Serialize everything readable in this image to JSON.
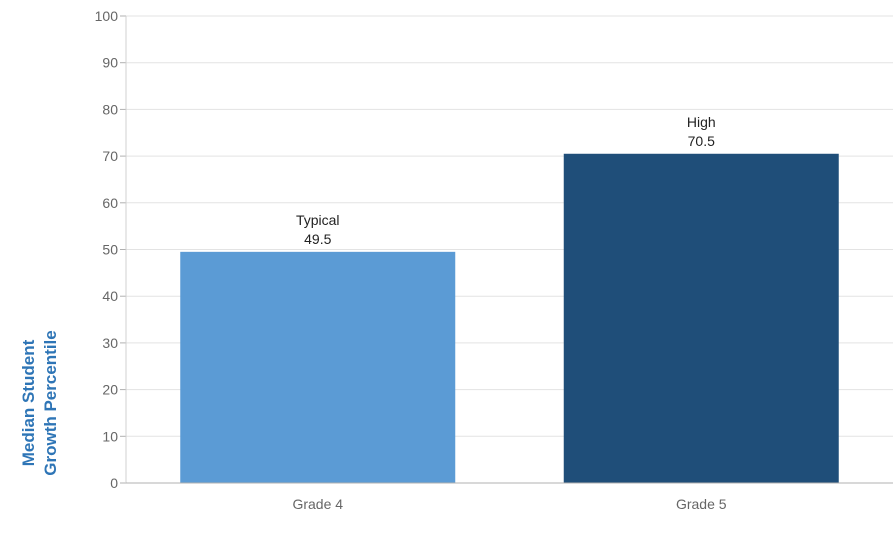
{
  "chart_data": {
    "type": "bar",
    "categories": [
      "Grade 4",
      "Grade 5"
    ],
    "values": [
      49.5,
      70.5
    ],
    "bar_labels": [
      "Typical",
      "High"
    ],
    "value_labels": [
      "49.5",
      "70.5"
    ],
    "bar_colors": [
      "#5b9bd5",
      "#1f4e79"
    ],
    "title": "",
    "xlabel": "",
    "ylabel_lines": [
      "Median Student",
      "Growth Percentile"
    ],
    "ylabel_color": "#2e75b6",
    "ylim": [
      0,
      100
    ],
    "yticks": [
      "0",
      "10",
      "20",
      "30",
      "40",
      "50",
      "60",
      "70",
      "80",
      "90",
      "100"
    ],
    "grid": true,
    "legend": "none"
  }
}
